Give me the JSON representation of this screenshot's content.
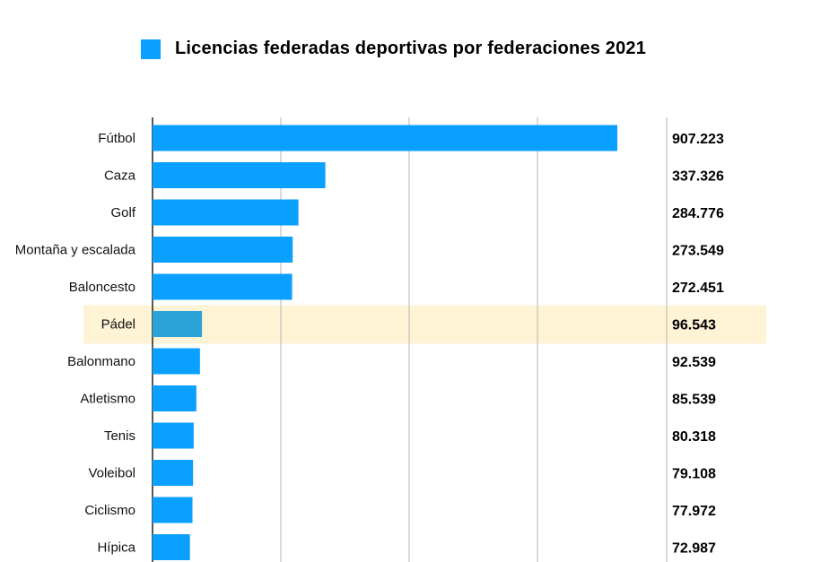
{
  "chart_data": {
    "type": "bar",
    "orientation": "horizontal",
    "series": [
      {
        "name": "Licencias federadas deportivas por federaciones 2021",
        "color": "#0aa0ff"
      }
    ],
    "categories": [
      "Fútbol",
      "Caza",
      "Golf",
      "Montaña y escalada",
      "Baloncesto",
      "Pádel",
      "Balonmano",
      "Atletismo",
      "Tenis",
      "Voleibol",
      "Ciclismo",
      "Hípica"
    ],
    "values": [
      907223,
      337326,
      284776,
      273549,
      272451,
      96543,
      92539,
      85539,
      80318,
      79108,
      77972,
      72987
    ],
    "value_labels": [
      "907.223",
      "337.326",
      "284.776",
      "273.549",
      "272.451",
      "96.543",
      "92.539",
      "85.539",
      "80.318",
      "79.108",
      "77.972",
      "72.987"
    ],
    "xlim": [
      0,
      1000000
    ],
    "grid": true,
    "legend": "top",
    "highlight": {
      "category": "Pádel",
      "bar_color": "#2ba3d8",
      "band_color": "#fff3d6"
    }
  }
}
